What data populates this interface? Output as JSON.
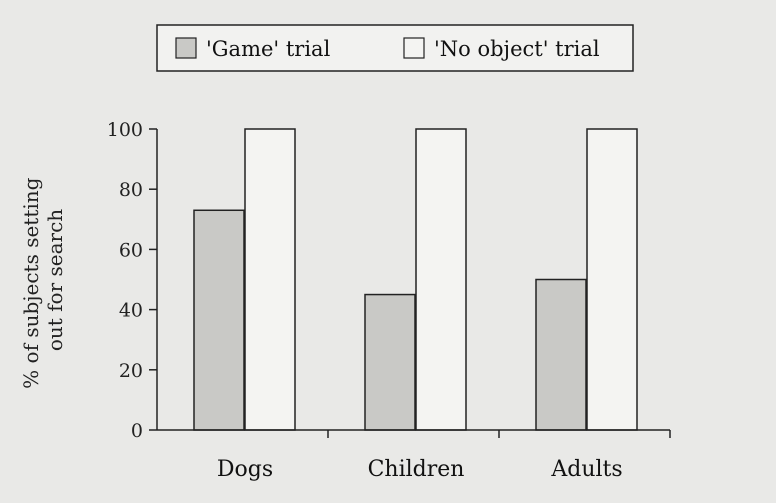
{
  "chart_data": {
    "type": "bar",
    "categories": [
      "Dogs",
      "Children",
      "Adults"
    ],
    "series": [
      {
        "name": "'Game' trial",
        "values": [
          73,
          45,
          50
        ],
        "color": "#c9c9c6"
      },
      {
        "name": "'No object' trial",
        "values": [
          100,
          100,
          100
        ],
        "color": "#f4f4f2"
      }
    ],
    "ylabel_lines": [
      "% of subjects setting",
      "out for search"
    ],
    "ylim": [
      0,
      100
    ],
    "yticks": [
      "0",
      "20",
      "40",
      "60",
      "80",
      "100"
    ],
    "legend_position": "top-center",
    "grid": false
  }
}
